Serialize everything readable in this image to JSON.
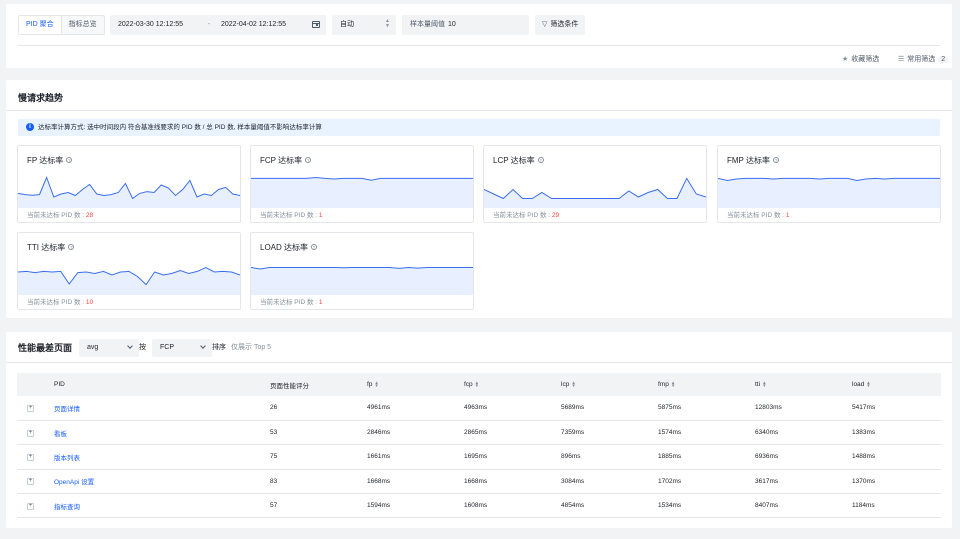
{
  "filter": {
    "tabs": [
      "PID 聚合",
      "指标总览"
    ],
    "date_start": "2022-03-30 12:12:55",
    "date_sep": "-",
    "date_end": "2022-04-02 12:12:55",
    "granularity": "自动",
    "sample_label": "样本量阈值",
    "sample_value": "10",
    "filter_button": "筛选条件",
    "collect_filter": "收藏筛选",
    "common_filter": "常用筛选",
    "common_count": "2"
  },
  "trend": {
    "title": "慢请求趋势",
    "info": "达标率计算方式: 选中时间段内 符合基准线要求的 PID 数 / 总 PID 数, 样本量阈值不影响达标率计算",
    "footer_label": "当前未达标 PID 数 :",
    "cards": [
      {
        "title": "FP 达标率",
        "count": "28"
      },
      {
        "title": "FCP 达标率",
        "count": "1"
      },
      {
        "title": "LCP 达标率",
        "count": "29"
      },
      {
        "title": "FMP 达标率",
        "count": "1"
      },
      {
        "title": "TTI 达标率",
        "count": "10"
      },
      {
        "title": "LOAD 达标率",
        "count": "1"
      }
    ],
    "sparklines": [
      [
        0.42,
        0.38,
        0.36,
        0.38,
        0.95,
        0.3,
        0.4,
        0.45,
        0.35,
        0.55,
        0.72,
        0.4,
        0.35,
        0.38,
        0.45,
        0.75,
        0.25,
        0.42,
        0.48,
        0.45,
        0.7,
        0.6,
        0.35,
        0.55,
        0.85,
        0.3,
        0.4,
        0.35,
        0.55,
        0.62,
        0.4,
        0.35
      ],
      [
        0.92,
        0.92,
        0.92,
        0.92,
        0.92,
        0.92,
        0.92,
        0.95,
        0.92,
        0.9,
        0.92,
        0.92,
        0.92,
        0.86,
        0.92,
        0.92,
        0.92,
        0.92,
        0.92,
        0.92,
        0.92,
        0.92,
        0.92,
        0.92,
        0.92
      ],
      [
        0.55,
        0.4,
        0.25,
        0.55,
        0.25,
        0.25,
        0.45,
        0.25,
        0.25,
        0.25,
        0.25,
        0.25,
        0.25,
        0.25,
        0.25,
        0.5,
        0.3,
        0.45,
        0.55,
        0.25,
        0.25,
        0.92,
        0.4,
        0.3
      ],
      [
        0.92,
        0.85,
        0.9,
        0.92,
        0.92,
        0.92,
        0.9,
        0.92,
        0.92,
        0.92,
        0.92,
        0.9,
        0.92,
        0.92,
        0.92,
        0.85,
        0.9,
        0.92,
        0.9,
        0.92,
        0.92,
        0.92,
        0.92,
        0.92,
        0.92
      ],
      [
        0.7,
        0.72,
        0.68,
        0.72,
        0.7,
        0.72,
        0.3,
        0.68,
        0.7,
        0.65,
        0.72,
        0.6,
        0.7,
        0.72,
        0.55,
        0.28,
        0.7,
        0.6,
        0.65,
        0.75,
        0.65,
        0.72,
        0.85,
        0.7,
        0.72,
        0.7,
        0.6
      ],
      [
        0.85,
        0.8,
        0.85,
        0.85,
        0.85,
        0.85,
        0.85,
        0.85,
        0.85,
        0.85,
        0.84,
        0.85,
        0.85,
        0.85,
        0.85,
        0.85,
        0.82,
        0.85,
        0.83,
        0.85,
        0.85,
        0.85,
        0.85,
        0.85,
        0.85
      ]
    ]
  },
  "worst": {
    "title": "性能最差页面",
    "agg": "avg",
    "by": "按",
    "metric": "FCP",
    "sort": "排序",
    "top_note": "仅展示 Top 5",
    "columns": [
      "PID",
      "页面性能评分",
      "fp",
      "fcp",
      "lcp",
      "fmp",
      "tti",
      "load"
    ],
    "rows": [
      {
        "pid": "页面详情",
        "score": "26",
        "fp": "4961ms",
        "fcp": "4963ms",
        "lcp": "5689ms",
        "fmp": "5875ms",
        "tti": "12803ms",
        "load": "5417ms"
      },
      {
        "pid": "看板",
        "score": "53",
        "fp": "2846ms",
        "fcp": "2865ms",
        "lcp": "7359ms",
        "fmp": "1574ms",
        "tti": "6340ms",
        "load": "1383ms"
      },
      {
        "pid": "版本列表",
        "score": "75",
        "fp": "1661ms",
        "fcp": "1695ms",
        "lcp": "896ms",
        "fmp": "1885ms",
        "tti": "6936ms",
        "load": "1488ms"
      },
      {
        "pid": "OpenApi 设置",
        "score": "83",
        "fp": "1668ms",
        "fcp": "1668ms",
        "lcp": "3084ms",
        "fmp": "1702ms",
        "tti": "3617ms",
        "load": "1370ms"
      },
      {
        "pid": "指标查询",
        "score": "57",
        "fp": "1594ms",
        "fcp": "1608ms",
        "lcp": "4854ms",
        "fmp": "1534ms",
        "tti": "8407ms",
        "load": "1184ms"
      }
    ]
  },
  "colors": {
    "accent": "#165dff",
    "line": "#3a6ef0",
    "area": "#e8efff",
    "danger": "#f53f3f"
  }
}
